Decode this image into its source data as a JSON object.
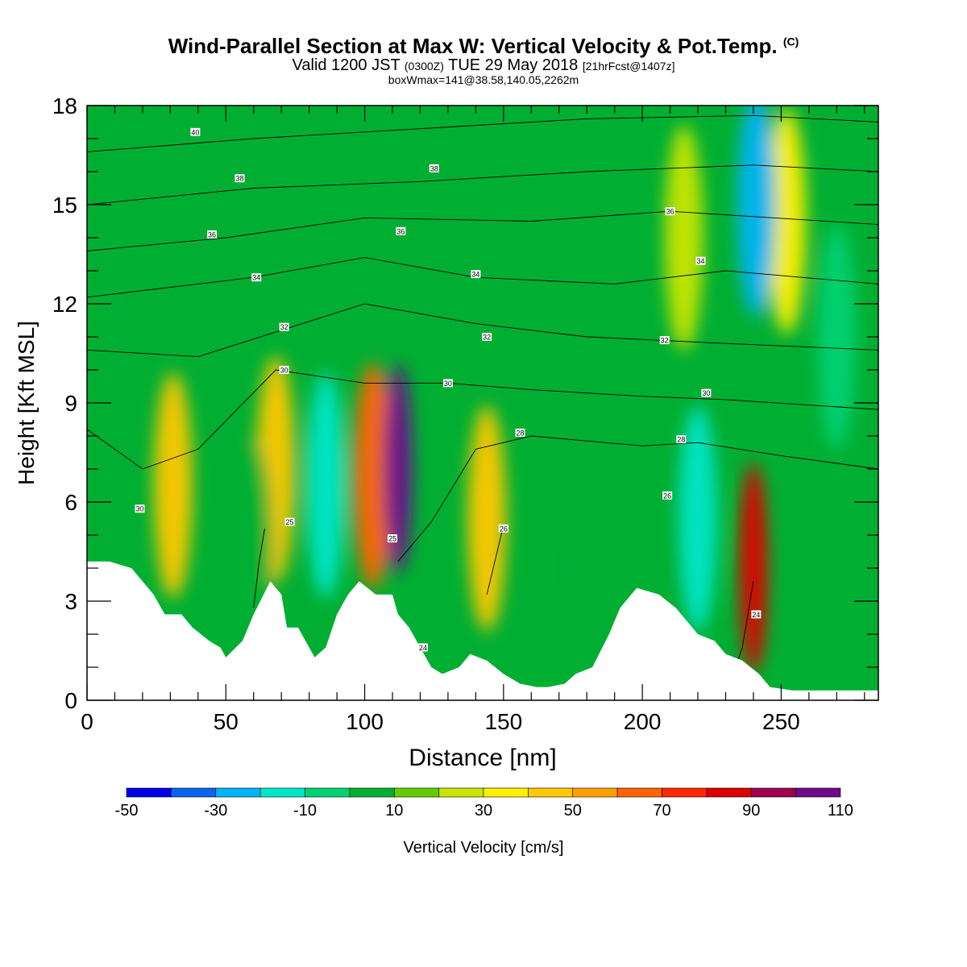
{
  "title": {
    "main": "Wind-Parallel Section at Max W: Vertical Velocity & Pot.Temp.",
    "copyright": "(C)",
    "valid_prefix": "Valid 1200 JST",
    "valid_utc": "(0300Z)",
    "valid_date": "TUE 29 May 2018",
    "forecast": "[21hrFcst@1407z]",
    "box_info": "boxWmax=141@38.58,140.05,2262m"
  },
  "chart_data": {
    "type": "heatmap",
    "xlabel": "Distance [nm]",
    "ylabel": "Height [Kft MSL]",
    "xlim": [
      0,
      285
    ],
    "ylim": [
      0,
      18
    ],
    "x_ticks": [
      "0",
      "50",
      "100",
      "150",
      "200",
      "250"
    ],
    "y_ticks": [
      "0",
      "3",
      "6",
      "9",
      "12",
      "15",
      "18"
    ],
    "colorbar": {
      "label": "Vertical Velocity [cm/s]",
      "tick_labels": [
        "-50",
        "-30",
        "-10",
        "10",
        "30",
        "50",
        "70",
        "90",
        "110"
      ],
      "bins": [
        {
          "from": -50,
          "to": -40,
          "color": "#0000e8"
        },
        {
          "from": -40,
          "to": -30,
          "color": "#0a64f0"
        },
        {
          "from": -30,
          "to": -20,
          "color": "#00b4f5"
        },
        {
          "from": -20,
          "to": -10,
          "color": "#00e6c8"
        },
        {
          "from": -10,
          "to": 0,
          "color": "#00d273"
        },
        {
          "from": 0,
          "to": 10,
          "color": "#00af32"
        },
        {
          "from": 10,
          "to": 20,
          "color": "#64cd00"
        },
        {
          "from": 20,
          "to": 30,
          "color": "#c8e600"
        },
        {
          "from": 30,
          "to": 40,
          "color": "#fff000"
        },
        {
          "from": 40,
          "to": 50,
          "color": "#ffc800"
        },
        {
          "from": 50,
          "to": 60,
          "color": "#ffa000"
        },
        {
          "from": 60,
          "to": 70,
          "color": "#ff6400"
        },
        {
          "from": 70,
          "to": 80,
          "color": "#ff2800"
        },
        {
          "from": 80,
          "to": 90,
          "color": "#dc0000"
        },
        {
          "from": 90,
          "to": 100,
          "color": "#a00050"
        },
        {
          "from": 100,
          "to": 110,
          "color": "#6e0a8c"
        }
      ]
    },
    "cells": [
      {
        "x": 31,
        "y": 6.5,
        "v": 40
      },
      {
        "x": 68,
        "y": 7.0,
        "v": 40
      },
      {
        "x": 103,
        "y": 6.8,
        "v": 60
      },
      {
        "x": 112,
        "y": 7.0,
        "v": 105
      },
      {
        "x": 144,
        "y": 5.5,
        "v": 45
      },
      {
        "x": 240,
        "y": 4.0,
        "v": 80
      },
      {
        "x": 252,
        "y": 14.5,
        "v": 35
      },
      {
        "x": 215,
        "y": 14.0,
        "v": 25
      },
      {
        "x": 86,
        "y": 6.5,
        "v": -15
      },
      {
        "x": 241,
        "y": 15.0,
        "v": -30
      },
      {
        "x": 270,
        "y": 11.0,
        "v": -10
      },
      {
        "x": 220,
        "y": 5.5,
        "v": -15
      },
      {
        "x": 170,
        "y": 4.0,
        "v": 5
      },
      {
        "x": 60,
        "y": 4.5,
        "v": 5
      },
      {
        "x": 10,
        "y": 12.0,
        "v": 5
      }
    ],
    "terrain": [
      [
        0,
        4.2
      ],
      [
        8,
        4.2
      ],
      [
        16,
        4.0
      ],
      [
        20,
        3.6
      ],
      [
        24,
        3.2
      ],
      [
        28,
        2.6
      ],
      [
        34,
        2.6
      ],
      [
        38,
        2.2
      ],
      [
        44,
        1.8
      ],
      [
        48,
        1.6
      ],
      [
        50,
        1.3
      ],
      [
        56,
        1.8
      ],
      [
        60,
        2.6
      ],
      [
        66,
        3.6
      ],
      [
        70,
        3.2
      ],
      [
        72,
        2.2
      ],
      [
        76,
        2.2
      ],
      [
        80,
        1.6
      ],
      [
        82,
        1.3
      ],
      [
        86,
        1.6
      ],
      [
        90,
        2.6
      ],
      [
        94,
        3.2
      ],
      [
        98,
        3.6
      ],
      [
        104,
        3.2
      ],
      [
        110,
        3.2
      ],
      [
        112,
        2.6
      ],
      [
        116,
        2.2
      ],
      [
        120,
        1.6
      ],
      [
        124,
        1.0
      ],
      [
        128,
        0.8
      ],
      [
        134,
        1.0
      ],
      [
        138,
        1.4
      ],
      [
        144,
        1.2
      ],
      [
        150,
        0.8
      ],
      [
        156,
        0.5
      ],
      [
        162,
        0.4
      ],
      [
        166,
        0.4
      ],
      [
        172,
        0.5
      ],
      [
        176,
        0.8
      ],
      [
        182,
        1.0
      ],
      [
        188,
        2.0
      ],
      [
        192,
        2.8
      ],
      [
        198,
        3.4
      ],
      [
        206,
        3.2
      ],
      [
        212,
        2.8
      ],
      [
        216,
        2.4
      ],
      [
        220,
        2.0
      ],
      [
        226,
        1.8
      ],
      [
        230,
        1.4
      ],
      [
        236,
        1.2
      ],
      [
        242,
        0.8
      ],
      [
        246,
        0.4
      ],
      [
        254,
        0.3
      ],
      [
        285,
        0.3
      ]
    ],
    "isentropes": {
      "levels": [
        24,
        25,
        26,
        28,
        30,
        32,
        34,
        36,
        38,
        40
      ],
      "lines": [
        {
          "label": "24",
          "points": [
            [
              232,
              0.6
            ],
            [
              236,
              1.6
            ],
            [
              238,
              2.6
            ],
            [
              240,
              3.6
            ]
          ]
        },
        {
          "label": "25",
          "points": [
            [
              60,
              2.8
            ],
            [
              62,
              4.2
            ],
            [
              64,
              5.2
            ]
          ]
        },
        {
          "label": "26",
          "points": [
            [
              144,
              3.2
            ],
            [
              148,
              4.6
            ],
            [
              150,
              5.3
            ]
          ]
        },
        {
          "label": "28",
          "points": [
            [
              112,
              4.2
            ],
            [
              116,
              4.6
            ],
            [
              124,
              5.4
            ],
            [
              140,
              7.6
            ],
            [
              160,
              8.0
            ],
            [
              200,
              7.7
            ],
            [
              220,
              7.8
            ],
            [
              250,
              7.4
            ],
            [
              285,
              7.0
            ]
          ]
        },
        {
          "label": "30",
          "points": [
            [
              0,
              8.2
            ],
            [
              20,
              7.0
            ],
            [
              40,
              7.6
            ],
            [
              68,
              10.0
            ],
            [
              100,
              9.6
            ],
            [
              130,
              9.6
            ],
            [
              160,
              9.4
            ],
            [
              200,
              9.2
            ],
            [
              230,
              9.1
            ],
            [
              285,
              8.8
            ]
          ]
        },
        {
          "label": "32",
          "points": [
            [
              0,
              10.6
            ],
            [
              40,
              10.4
            ],
            [
              70,
              11.2
            ],
            [
              100,
              12.0
            ],
            [
              140,
              11.4
            ],
            [
              180,
              11.0
            ],
            [
              230,
              10.8
            ],
            [
              285,
              10.6
            ]
          ]
        },
        {
          "label": "34",
          "points": [
            [
              0,
              12.2
            ],
            [
              60,
              12.8
            ],
            [
              100,
              13.4
            ],
            [
              140,
              12.8
            ],
            [
              190,
              12.6
            ],
            [
              230,
              13.0
            ],
            [
              285,
              12.6
            ]
          ]
        },
        {
          "label": "36",
          "points": [
            [
              0,
              13.6
            ],
            [
              50,
              14.0
            ],
            [
              100,
              14.6
            ],
            [
              160,
              14.5
            ],
            [
              210,
              14.8
            ],
            [
              285,
              14.4
            ]
          ]
        },
        {
          "label": "38",
          "points": [
            [
              0,
              15.0
            ],
            [
              60,
              15.5
            ],
            [
              120,
              15.7
            ],
            [
              180,
              16.0
            ],
            [
              240,
              16.2
            ],
            [
              285,
              16.0
            ]
          ]
        },
        {
          "label": "40",
          "points": [
            [
              0,
              16.6
            ],
            [
              60,
              17.0
            ],
            [
              120,
              17.3
            ],
            [
              180,
              17.6
            ],
            [
              240,
              17.7
            ],
            [
              285,
              17.5
            ]
          ]
        }
      ]
    },
    "contour_labels": [
      {
        "text": "40",
        "x": 39,
        "y": 17.2
      },
      {
        "text": "38",
        "x": 55,
        "y": 15.8
      },
      {
        "text": "38",
        "x": 125,
        "y": 16.1
      },
      {
        "text": "36",
        "x": 45,
        "y": 14.1
      },
      {
        "text": "36",
        "x": 113,
        "y": 14.2
      },
      {
        "text": "36",
        "x": 210,
        "y": 14.8
      },
      {
        "text": "34",
        "x": 61,
        "y": 12.8
      },
      {
        "text": "34",
        "x": 140,
        "y": 12.9
      },
      {
        "text": "34",
        "x": 221,
        "y": 13.3
      },
      {
        "text": "32",
        "x": 71,
        "y": 11.3
      },
      {
        "text": "32",
        "x": 144,
        "y": 11.0
      },
      {
        "text": "32",
        "x": 208,
        "y": 10.9
      },
      {
        "text": "30",
        "x": 71,
        "y": 10.0
      },
      {
        "text": "30",
        "x": 130,
        "y": 9.6
      },
      {
        "text": "30",
        "x": 223,
        "y": 9.3
      },
      {
        "text": "30",
        "x": 19,
        "y": 5.8
      },
      {
        "text": "28",
        "x": 156,
        "y": 8.1
      },
      {
        "text": "28",
        "x": 214,
        "y": 7.9
      },
      {
        "text": "26",
        "x": 209,
        "y": 6.2
      },
      {
        "text": "25",
        "x": 73,
        "y": 5.4
      },
      {
        "text": "25",
        "x": 110,
        "y": 4.9
      },
      {
        "text": "26",
        "x": 150,
        "y": 5.2
      },
      {
        "text": "24",
        "x": 241,
        "y": 2.6
      },
      {
        "text": "24",
        "x": 121,
        "y": 1.6
      }
    ]
  }
}
